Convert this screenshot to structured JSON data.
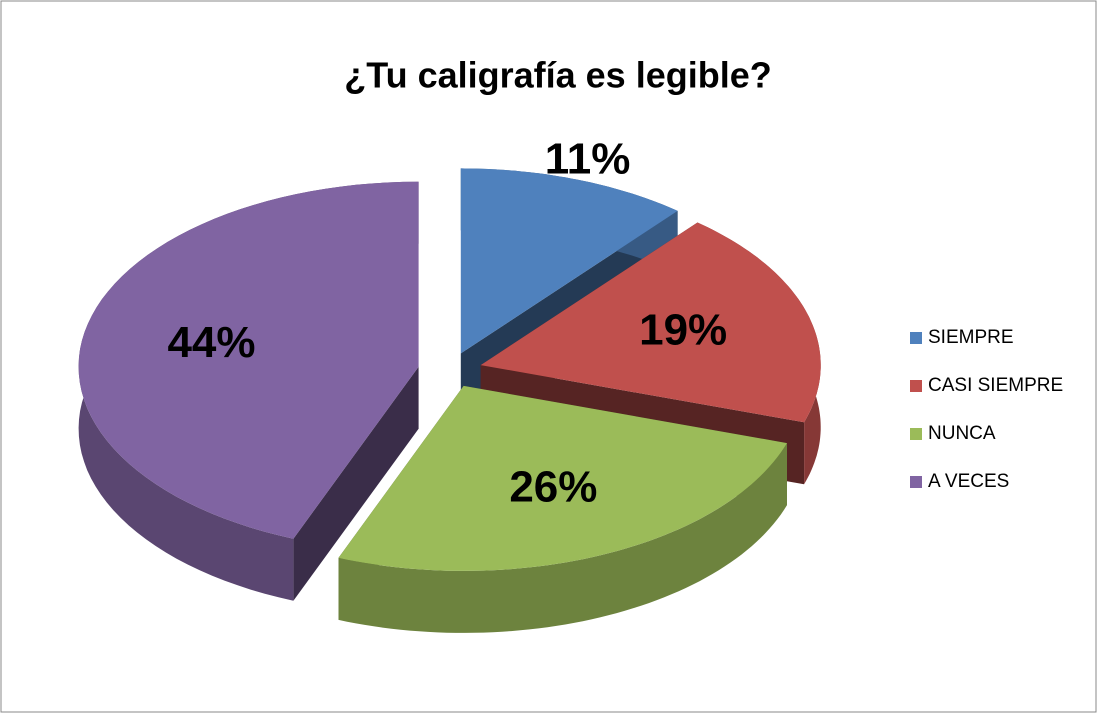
{
  "chart_data": {
    "type": "pie",
    "title": "¿Tu caligrafía es legible?",
    "categories": [
      "SIEMPRE",
      "CASI SIEMPRE",
      "NUNCA",
      "A VECES"
    ],
    "values": [
      11,
      19,
      26,
      44
    ],
    "value_labels": [
      "11%",
      "19%",
      "26%",
      "44%"
    ],
    "colors": [
      "#4f81bd",
      "#c0504d",
      "#9bbb59",
      "#8064a2"
    ],
    "legend": "right"
  }
}
